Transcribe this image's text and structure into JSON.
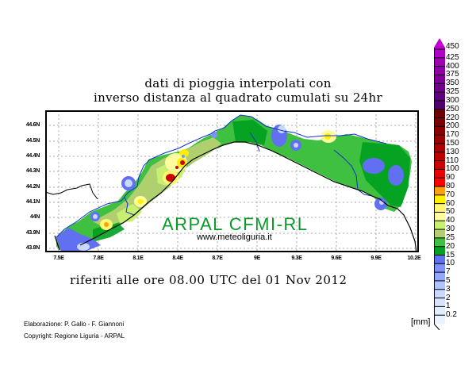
{
  "header": {
    "title_line1": "dati di pioggia interpolati con",
    "title_line2": "inverso distanza al quadrato cumulati su 24hr"
  },
  "map": {
    "region": "Liguria",
    "watermark": "ARPAL CFMI-RL",
    "url": "www.meteoliguria.it",
    "lat_ticks": [
      "44.6N",
      "44.5N",
      "44.4N",
      "44.3N",
      "44.2N",
      "44.1N",
      "44N",
      "43.9N",
      "43.8N"
    ],
    "lon_ticks": [
      "7.5E",
      "7.8E",
      "8.1E",
      "8.4E",
      "8.7E",
      "9E",
      "9.3E",
      "9.6E",
      "9.9E",
      "10.2E"
    ],
    "colors": {
      "frame": "#000000",
      "grid": "#a0a0a0",
      "boundary": "#1030d0",
      "coast": "#000000"
    }
  },
  "footer": {
    "reference": "riferiti alle ore 08.00 UTC del 01 Nov 2012",
    "credit_line1": "Elaborazione: P. Gallo - F. Giannoni",
    "credit_line2": "Copyright: Regione Liguria - ARPAL"
  },
  "colorbar": {
    "unit": "[mm]",
    "levels": [
      "450",
      "425",
      "400",
      "375",
      "350",
      "325",
      "300",
      "250",
      "220",
      "200",
      "170",
      "150",
      "130",
      "110",
      "100",
      "90",
      "80",
      "70",
      "60",
      "50",
      "40",
      "30",
      "25",
      "20",
      "15",
      "10",
      "7",
      "5",
      "3",
      "2",
      "1",
      "0.2"
    ],
    "band_colors": [
      "#b000c8",
      "#a000b4",
      "#9000a6",
      "#800098",
      "#70008a",
      "#60007c",
      "#500070",
      "#6e0000",
      "#7c0000",
      "#8a0000",
      "#9a0000",
      "#ac0000",
      "#bc0000",
      "#d00000",
      "#e60000",
      "#ff0000",
      "#ffa010",
      "#fff000",
      "#fff870",
      "#fffca0",
      "#c8f070",
      "#b0d070",
      "#40c040",
      "#00a020",
      "#6070f0",
      "#8090ff",
      "#90a8ff",
      "#b0c4ff",
      "#c8d8ff",
      "#d8e4ff",
      "#e2ecff",
      "#eaf2ff"
    ]
  }
}
